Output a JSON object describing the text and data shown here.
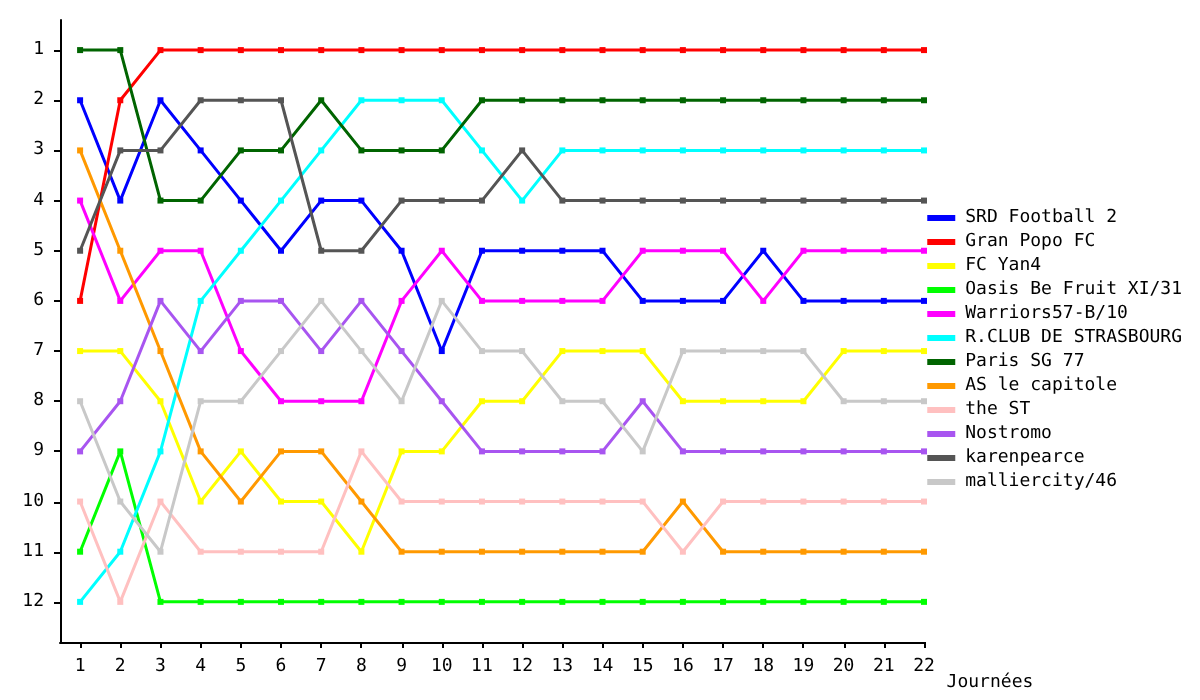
{
  "chart_data": {
    "type": "line",
    "xlabel": "Journées",
    "x": [
      1,
      2,
      3,
      4,
      5,
      6,
      7,
      8,
      9,
      10,
      11,
      12,
      13,
      14,
      15,
      16,
      17,
      18,
      19,
      20,
      21,
      22
    ],
    "xlim": [
      0.5,
      22
    ],
    "xticks": [
      1,
      2,
      3,
      4,
      5,
      6,
      7,
      8,
      9,
      10,
      11,
      12,
      13,
      14,
      15,
      16,
      17,
      18,
      19,
      20,
      21,
      22
    ],
    "ylim": [
      12.8,
      0.4
    ],
    "yticks": [
      1,
      2,
      3,
      4,
      5,
      6,
      7,
      8,
      9,
      10,
      11,
      12
    ],
    "grid": false,
    "legend": "right",
    "marker": "square",
    "line_style": "solid",
    "series": [
      {
        "name": "SRD Football 2",
        "color": "#0000ff",
        "values": [
          2,
          4,
          2,
          3,
          4,
          5,
          4,
          4,
          5,
          7,
          5,
          5,
          5,
          5,
          6,
          6,
          6,
          5,
          6,
          6,
          6,
          6
        ]
      },
      {
        "name": "Gran Popo FC",
        "color": "#ff0000",
        "values": [
          6,
          2,
          1,
          1,
          1,
          1,
          1,
          1,
          1,
          1,
          1,
          1,
          1,
          1,
          1,
          1,
          1,
          1,
          1,
          1,
          1,
          1
        ]
      },
      {
        "name": "FC Yan4",
        "color": "#ffff00",
        "values": [
          7,
          7,
          8,
          10,
          9,
          10,
          10,
          11,
          9,
          9,
          8,
          8,
          7,
          7,
          7,
          8,
          8,
          8,
          8,
          7,
          7,
          7
        ]
      },
      {
        "name": "Oasis Be Fruit XI/31",
        "color": "#00ff00",
        "values": [
          11,
          9,
          12,
          12,
          12,
          12,
          12,
          12,
          12,
          12,
          12,
          12,
          12,
          12,
          12,
          12,
          12,
          12,
          12,
          12,
          12,
          12
        ]
      },
      {
        "name": "Warriors57-B/10",
        "color": "#ff00ff",
        "values": [
          4,
          6,
          5,
          5,
          7,
          8,
          8,
          8,
          6,
          5,
          6,
          6,
          6,
          6,
          5,
          5,
          5,
          6,
          5,
          5,
          5,
          5
        ]
      },
      {
        "name": "R.CLUB DE STRASBOURG",
        "color": "#00ffff",
        "values": [
          12,
          11,
          9,
          6,
          5,
          4,
          3,
          2,
          2,
          2,
          3,
          4,
          3,
          3,
          3,
          3,
          3,
          3,
          3,
          3,
          3,
          3
        ]
      },
      {
        "name": "Paris SG 77",
        "color": "#006400",
        "values": [
          1,
          1,
          4,
          4,
          3,
          3,
          2,
          3,
          3,
          3,
          2,
          2,
          2,
          2,
          2,
          2,
          2,
          2,
          2,
          2,
          2,
          2
        ]
      },
      {
        "name": "AS le capitole",
        "color": "#ff9900",
        "values": [
          3,
          5,
          7,
          9,
          10,
          9,
          9,
          10,
          11,
          11,
          11,
          11,
          11,
          11,
          11,
          10,
          11,
          11,
          11,
          11,
          11,
          11
        ]
      },
      {
        "name": "the ST",
        "color": "#ffc0c0",
        "values": [
          10,
          12,
          10,
          11,
          11,
          11,
          11,
          9,
          10,
          10,
          10,
          10,
          10,
          10,
          10,
          11,
          10,
          10,
          10,
          10,
          10,
          10
        ]
      },
      {
        "name": "Nostromo",
        "color": "#a855f0",
        "values": [
          9,
          8,
          6,
          7,
          6,
          6,
          7,
          6,
          7,
          8,
          9,
          9,
          9,
          9,
          8,
          9,
          9,
          9,
          9,
          9,
          9,
          9
        ]
      },
      {
        "name": "karenpearce",
        "color": "#555555",
        "values": [
          5,
          3,
          3,
          2,
          2,
          2,
          5,
          5,
          4,
          4,
          4,
          3,
          4,
          4,
          4,
          4,
          4,
          4,
          4,
          4,
          4,
          4
        ]
      },
      {
        "name": "malliercity/46",
        "color": "#c8c8c8",
        "values": [
          8,
          10,
          11,
          8,
          8,
          7,
          6,
          7,
          8,
          6,
          7,
          7,
          8,
          8,
          9,
          7,
          7,
          7,
          7,
          8,
          8,
          8
        ]
      }
    ]
  }
}
